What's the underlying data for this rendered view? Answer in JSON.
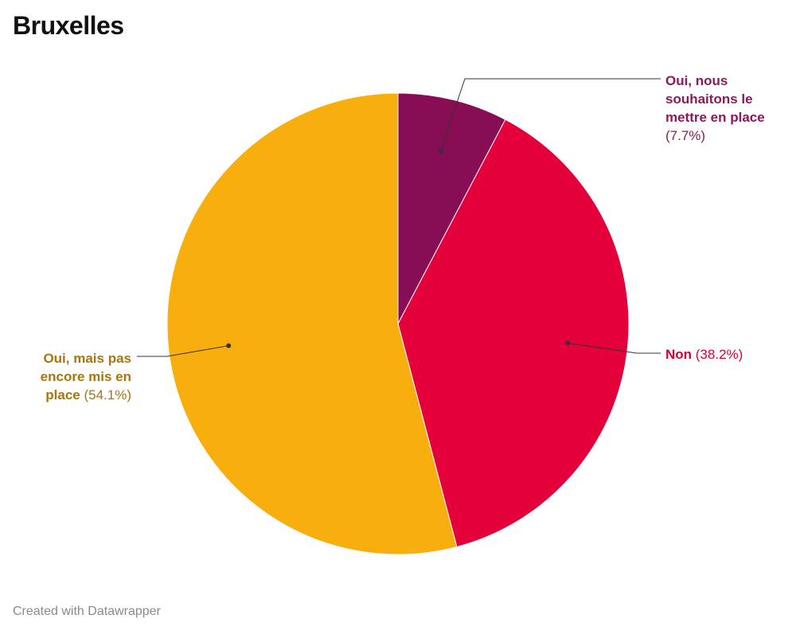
{
  "chart_data": {
    "type": "pie",
    "title": "Bruxelles",
    "slices": [
      {
        "label_lines": [
          "Oui, nous",
          "souhaitons le",
          "mettre en place"
        ],
        "value": 7.7,
        "value_text": "(7.7%)",
        "color": "#870d55",
        "label_color": "#8a1a5c"
      },
      {
        "label_lines": [
          "Non"
        ],
        "value": 38.2,
        "value_text": "(38.2%)",
        "color": "#e4003b",
        "label_color": "#d6003a"
      },
      {
        "label_lines": [
          "Oui, mais pas",
          "encore mis en",
          "place"
        ],
        "value": 54.1,
        "value_text": "(54.1%)",
        "color": "#f8ae0c",
        "label_color": "#a8760a"
      }
    ]
  },
  "footer": {
    "credit": "Created with Datawrapper"
  }
}
